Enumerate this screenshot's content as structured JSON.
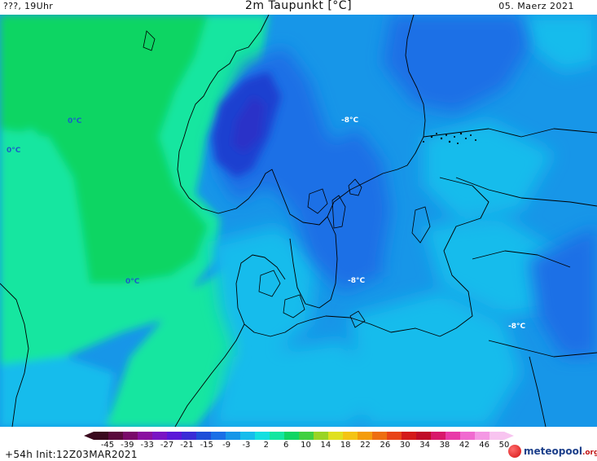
{
  "header": {
    "left_text": "???, 19Uhr",
    "title": "2m Taupunkt [°C]",
    "date": "05. Maerz 2021"
  },
  "map": {
    "colors": {
      "land_green": "#0fd563",
      "sea_teal": "#12e6a0",
      "blue_light": "#16bcec",
      "blue_mid": "#1796e8",
      "blue_deep": "#1a6fe6",
      "blue_dark": "#1a3fd0",
      "coastline": "#000000"
    },
    "contour_labels": [
      {
        "text": "-8°C",
        "style": "white"
      },
      {
        "text": "-8°C",
        "style": "white"
      },
      {
        "text": "-8°C",
        "style": "white"
      },
      {
        "text": "0°C",
        "style": "blue"
      },
      {
        "text": "0°C",
        "style": "blue"
      },
      {
        "text": "0°C",
        "style": "blue"
      }
    ]
  },
  "legend": {
    "ticks": [
      "-45",
      "-39",
      "-33",
      "-27",
      "-21",
      "-15",
      "-9",
      "-3",
      "2",
      "6",
      "10",
      "14",
      "18",
      "22",
      "26",
      "30",
      "34",
      "38",
      "42",
      "46",
      "50"
    ],
    "colors": [
      "#3a0a1e",
      "#5a0a3c",
      "#7a0a6a",
      "#8a10a0",
      "#7a14c4",
      "#5b18d8",
      "#3a2cd6",
      "#1f4ed8",
      "#1a6fe6",
      "#1796e8",
      "#16bcec",
      "#14dfe0",
      "#12e6a0",
      "#0fd563",
      "#40d040",
      "#9ad424",
      "#e0e020",
      "#f4c414",
      "#f49c0c",
      "#ee6e10",
      "#e84418",
      "#d41a1a",
      "#c00c28",
      "#d8186a",
      "#e83aa8",
      "#f06ad0",
      "#f498e4",
      "#f8c4f0"
    ]
  },
  "footer": {
    "run_info": "+54h  Init:12Z03MAR2021",
    "logo_main": "meteopool",
    "logo_tld": ".org"
  }
}
